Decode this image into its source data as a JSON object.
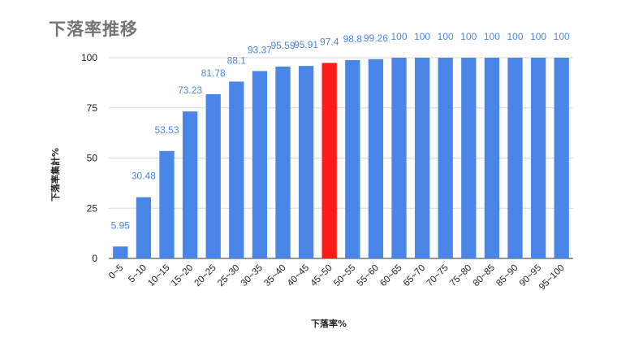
{
  "chart_data": {
    "type": "bar",
    "title": "下落率推移",
    "xlabel": "下落率%",
    "ylabel": "下落率集計%",
    "ylim": [
      0,
      100
    ],
    "yticks": [
      0,
      25,
      50,
      75,
      100
    ],
    "grid": true,
    "categories": [
      "0~5",
      "5~10",
      "10~15",
      "15~20",
      "20~25",
      "25~30",
      "30~35",
      "35~40",
      "40~45",
      "45~50",
      "50~55",
      "55~60",
      "60~65",
      "65~70",
      "70~75",
      "75~80",
      "80~85",
      "85~90",
      "90~95",
      "95~100"
    ],
    "values": [
      5.95,
      30.48,
      53.53,
      73.23,
      81.78,
      88.1,
      93.37,
      95.59,
      95.91,
      97.4,
      98.8,
      99.26,
      100,
      100,
      100,
      100,
      100,
      100,
      100,
      100
    ],
    "data_labels": [
      "5.95",
      "30.48",
      "53.53",
      "73.23",
      "81.78",
      "88.1",
      "93.37",
      "95.59",
      "95.91",
      "97.4",
      "98.8",
      "99.26",
      "100",
      "100",
      "100",
      "100",
      "100",
      "100",
      "100",
      "100"
    ],
    "bar_color": "#4a86e8",
    "highlight_color": "#ff1a1a",
    "highlight_index": 9,
    "label_color": "#4a86e8"
  }
}
